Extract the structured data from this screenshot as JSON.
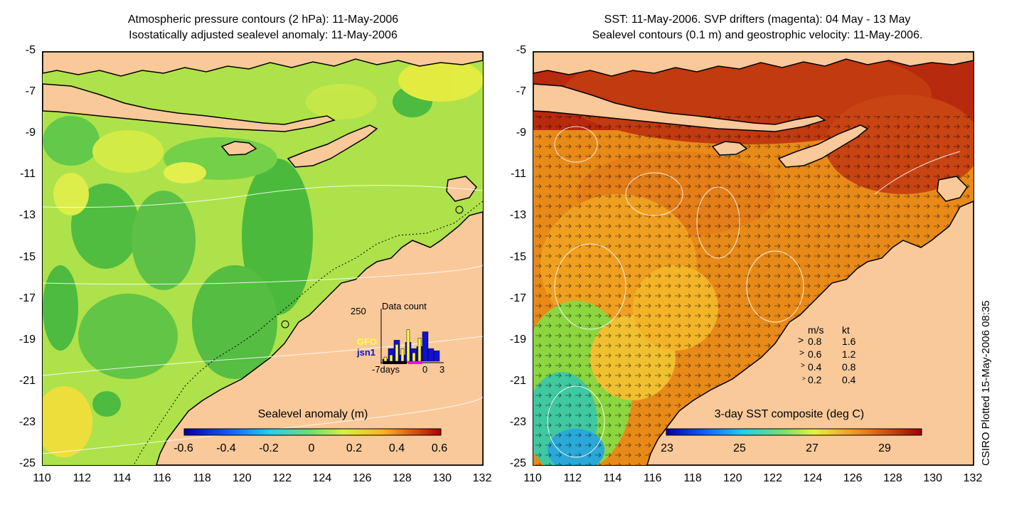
{
  "left_panel": {
    "title_line1": "Atmospheric pressure contours (2 hPa): 11-May-2006",
    "title_line2": "Isostatically adjusted sealevel anomaly: 11-May-2006",
    "colorbar_label": "Sealevel anomaly (m)",
    "colorbar_ticks": [
      "-0.6",
      "-0.4",
      "-0.2",
      "0",
      "0.2",
      "0.4",
      "0.6"
    ],
    "inset": {
      "title": "Data count",
      "ymax_label": "250",
      "legend_gfo": "GFO",
      "legend_jsn1": "jsn1",
      "x_left": "-7days",
      "x_mid": "0",
      "x_right": "3",
      "gfo_color": "#ffff44",
      "jsn1_color": "#1010d0",
      "gfo_counts": [
        20,
        30,
        80,
        60,
        150,
        40,
        110,
        0,
        0,
        0
      ],
      "jsn1_counts": [
        10,
        60,
        100,
        30,
        90,
        60,
        70,
        140,
        60,
        50
      ]
    }
  },
  "right_panel": {
    "title_line1": "SST: 11-May-2006. SVP drifters (magenta): 04 May - 13 May",
    "title_line2": "Sealevel contours (0.1 m) and geostrophic velocity: 11-May-2006.",
    "colorbar_label": "3-day SST composite (deg C)",
    "colorbar_ticks": [
      "23",
      "25",
      "27",
      "29"
    ],
    "legend": {
      "header_ms": "m/s",
      "header_kt": "kt",
      "rows": [
        {
          "ms": "0.8",
          "kt": "1.6"
        },
        {
          "ms": "0.6",
          "kt": "1.2"
        },
        {
          "ms": "0.4",
          "kt": "0.8"
        },
        {
          "ms": "0.2",
          "kt": "0.4"
        }
      ]
    }
  },
  "axes": {
    "y_labels": [
      "-5",
      "-7",
      "-9",
      "-11",
      "-13",
      "-15",
      "-17",
      "-19",
      "-21",
      "-23",
      "-25"
    ],
    "x_labels": [
      "110",
      "112",
      "114",
      "116",
      "118",
      "120",
      "122",
      "124",
      "126",
      "128",
      "130",
      "132"
    ]
  },
  "credit": "CSIRO Plotted 15-May-2006 08:35",
  "colors": {
    "land": "#f9c99a",
    "sla_base": "#aee24a",
    "sst_base": "#e88a18"
  }
}
